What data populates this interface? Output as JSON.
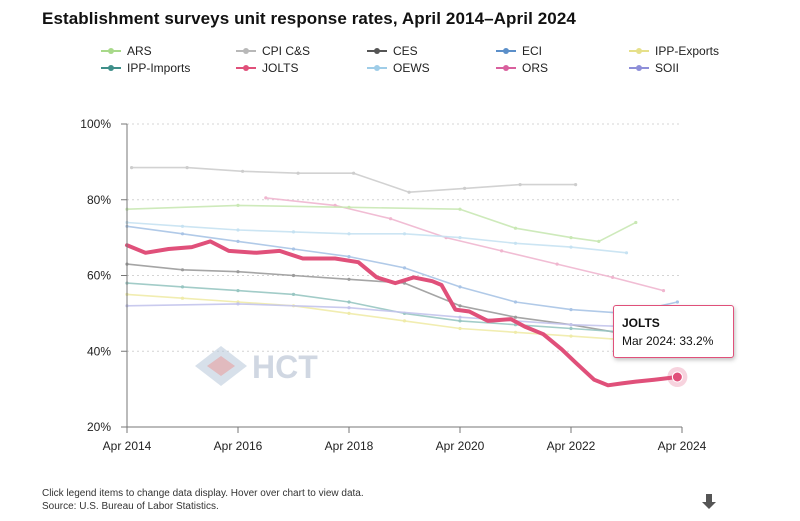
{
  "title": "Establishment surveys unit response rates, April 2014–April 2024",
  "legend": [
    {
      "name": "ARS",
      "color": "#a8d98a"
    },
    {
      "name": "CPI C&S",
      "color": "#b8b8b8"
    },
    {
      "name": "CES",
      "color": "#555555"
    },
    {
      "name": "ECI",
      "color": "#5b8fc9"
    },
    {
      "name": "IPP-Exports",
      "color": "#e6e08a"
    },
    {
      "name": "IPP-Imports",
      "color": "#3f8f8a"
    },
    {
      "name": "JOLTS",
      "color": "#e0507a"
    },
    {
      "name": "OEWS",
      "color": "#9fcde8"
    },
    {
      "name": "ORS",
      "color": "#d9609e"
    },
    {
      "name": "SOII",
      "color": "#8e8fd9"
    }
  ],
  "footer": {
    "line1": "Click legend items to change data display. Hover over chart to view data.",
    "line2": "Source: U.S. Bureau of Labor Statistics."
  },
  "tooltip": {
    "series": "JOLTS",
    "text": "Mar 2024: 33.2%"
  },
  "watermark": {
    "text": "HCT"
  },
  "icons": {
    "download": "download-arrow-icon"
  },
  "chart_data": {
    "type": "line",
    "ylim": [
      20,
      100
    ],
    "ytick_labels": [
      "20%",
      "40%",
      "60%",
      "80%",
      "100%"
    ],
    "xlim": [
      "2014-04",
      "2024-04"
    ],
    "xtick_labels": [
      "Apr 2014",
      "Apr 2016",
      "Apr 2018",
      "Apr 2020",
      "Apr 2022",
      "Apr 2024"
    ],
    "grid": true,
    "highlighted_series": "JOLTS",
    "series": [
      {
        "name": "CPI C&S",
        "color": "#cdcdcd",
        "points": [
          [
            "2014-05",
            88.5
          ],
          [
            "2015-05",
            88.5
          ],
          [
            "2016-05",
            87.5
          ],
          [
            "2017-05",
            87
          ],
          [
            "2018-05",
            87
          ],
          [
            "2019-05",
            82
          ],
          [
            "2020-05",
            83
          ],
          [
            "2021-05",
            84
          ],
          [
            "2022-05",
            84
          ]
        ]
      },
      {
        "name": "ORS",
        "color": "#f0b6cf",
        "points": [
          [
            "2016-10",
            80.5
          ],
          [
            "2018-01",
            78.5
          ],
          [
            "2019-01",
            75
          ],
          [
            "2020-01",
            70
          ],
          [
            "2021-01",
            66.5
          ],
          [
            "2022-01",
            63
          ],
          [
            "2023-01",
            59.5
          ],
          [
            "2023-12",
            56
          ]
        ]
      },
      {
        "name": "ARS",
        "color": "#c9e8b4",
        "points": [
          [
            "2014-04",
            77.5
          ],
          [
            "2016-04",
            78.5
          ],
          [
            "2018-04",
            78
          ],
          [
            "2020-04",
            77.5
          ],
          [
            "2021-04",
            72.5
          ],
          [
            "2022-04",
            70
          ],
          [
            "2022-10",
            69
          ],
          [
            "2023-06",
            74
          ]
        ]
      },
      {
        "name": "OEWS",
        "color": "#c6e2f2",
        "points": [
          [
            "2014-04",
            74
          ],
          [
            "2015-04",
            73
          ],
          [
            "2016-04",
            72
          ],
          [
            "2017-04",
            71.5
          ],
          [
            "2018-04",
            71
          ],
          [
            "2019-04",
            71
          ],
          [
            "2020-04",
            70
          ],
          [
            "2021-04",
            68.5
          ],
          [
            "2022-04",
            67.5
          ],
          [
            "2023-04",
            66
          ]
        ]
      },
      {
        "name": "ECI",
        "color": "#a9c4e6",
        "points": [
          [
            "2014-04",
            73
          ],
          [
            "2015-04",
            71
          ],
          [
            "2016-04",
            69
          ],
          [
            "2017-04",
            67
          ],
          [
            "2018-04",
            65
          ],
          [
            "2019-04",
            62
          ],
          [
            "2020-04",
            57
          ],
          [
            "2021-04",
            53
          ],
          [
            "2022-04",
            51
          ],
          [
            "2023-04",
            50
          ],
          [
            "2024-03",
            53
          ]
        ]
      },
      {
        "name": "CES",
        "color": "#9b9b9b",
        "points": [
          [
            "2014-04",
            63
          ],
          [
            "2015-04",
            61.5
          ],
          [
            "2016-04",
            61
          ],
          [
            "2017-04",
            60
          ],
          [
            "2018-04",
            59
          ],
          [
            "2019-04",
            58
          ],
          [
            "2020-04",
            52
          ],
          [
            "2021-04",
            49
          ],
          [
            "2022-04",
            47
          ],
          [
            "2023-04",
            44.5
          ],
          [
            "2024-03",
            43.5
          ]
        ]
      },
      {
        "name": "IPP-Imports",
        "color": "#98c6c2",
        "points": [
          [
            "2014-04",
            58
          ],
          [
            "2015-04",
            57
          ],
          [
            "2016-04",
            56
          ],
          [
            "2017-04",
            55
          ],
          [
            "2018-04",
            53
          ],
          [
            "2019-04",
            50
          ],
          [
            "2020-04",
            48
          ],
          [
            "2021-04",
            47
          ],
          [
            "2022-04",
            46
          ],
          [
            "2023-04",
            45
          ],
          [
            "2024-03",
            45
          ]
        ]
      },
      {
        "name": "IPP-Exports",
        "color": "#efeba9",
        "points": [
          [
            "2014-04",
            55
          ],
          [
            "2015-04",
            54
          ],
          [
            "2016-04",
            53
          ],
          [
            "2017-04",
            52
          ],
          [
            "2018-04",
            50
          ],
          [
            "2019-04",
            48
          ],
          [
            "2020-04",
            46
          ],
          [
            "2021-04",
            45
          ],
          [
            "2022-04",
            44
          ],
          [
            "2023-04",
            43
          ],
          [
            "2024-03",
            42
          ]
        ]
      },
      {
        "name": "SOII",
        "color": "#c3c4ec",
        "points": [
          [
            "2014-04",
            52
          ],
          [
            "2016-04",
            52.5
          ],
          [
            "2018-04",
            51.5
          ],
          [
            "2020-04",
            49
          ],
          [
            "2022-04",
            47
          ],
          [
            "2023-04",
            46.5
          ]
        ]
      },
      {
        "name": "JOLTS",
        "color": "#e0507a",
        "points": [
          [
            "2014-04",
            68
          ],
          [
            "2014-08",
            66
          ],
          [
            "2015-01",
            67
          ],
          [
            "2015-06",
            67.5
          ],
          [
            "2015-10",
            69
          ],
          [
            "2016-02",
            66.5
          ],
          [
            "2016-08",
            66
          ],
          [
            "2017-01",
            66.5
          ],
          [
            "2017-06",
            64.5
          ],
          [
            "2018-01",
            64.5
          ],
          [
            "2018-06",
            63.5
          ],
          [
            "2018-10",
            59.5
          ],
          [
            "2019-02",
            58
          ],
          [
            "2019-06",
            59.5
          ],
          [
            "2019-10",
            58.5
          ],
          [
            "2019-12",
            57.5
          ],
          [
            "2020-03",
            51
          ],
          [
            "2020-06",
            50.5
          ],
          [
            "2020-10",
            48
          ],
          [
            "2021-03",
            48.5
          ],
          [
            "2021-06",
            46.5
          ],
          [
            "2021-10",
            44.5
          ],
          [
            "2022-02",
            40.5
          ],
          [
            "2022-05",
            37
          ],
          [
            "2022-09",
            32.5
          ],
          [
            "2022-12",
            31
          ],
          [
            "2023-03",
            31.5
          ],
          [
            "2023-06",
            32
          ],
          [
            "2023-10",
            32.5
          ],
          [
            "2024-03",
            33.2
          ]
        ]
      }
    ]
  }
}
